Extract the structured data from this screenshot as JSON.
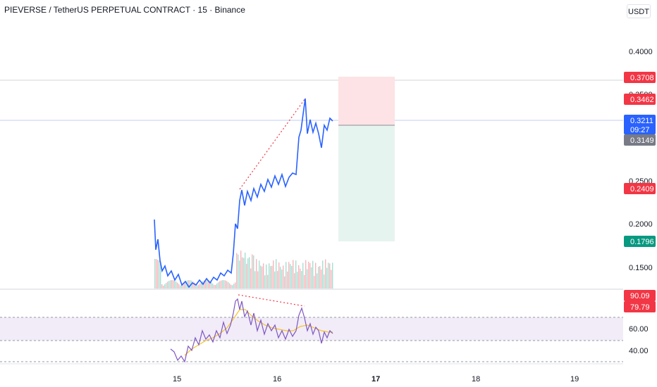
{
  "header": {
    "symbol_title": "PIEVERSE / TetherUS PERPETUAL CONTRACT · 15 · Binance",
    "currency_button": "USDT"
  },
  "price_axis": {
    "ticks": [
      "0.4000",
      "0.3500",
      "0.2500",
      "0.2000",
      "0.1500"
    ]
  },
  "price_tags": [
    {
      "label": "0.3708",
      "color": "#f23645"
    },
    {
      "label": "0.3462",
      "color": "#f23645"
    },
    {
      "label": "0.3211",
      "sub": "09:27",
      "color": "#2962ff"
    },
    {
      "label": "0.3149",
      "color": "#787b86"
    },
    {
      "label": "0.2409",
      "color": "#f23645"
    },
    {
      "label": "0.1796",
      "color": "#089981"
    }
  ],
  "rsi_axis": {
    "ticks": [
      "60.00",
      "40.00"
    ],
    "tags": [
      {
        "label": "90.09",
        "color": "#f23645"
      },
      {
        "label": "79.79",
        "color": "#f23645"
      }
    ]
  },
  "time_axis": {
    "labels": [
      {
        "text": "15",
        "bold": false
      },
      {
        "text": "16",
        "bold": false
      },
      {
        "text": "17",
        "bold": true
      },
      {
        "text": "18",
        "bold": false
      },
      {
        "text": "19",
        "bold": false
      }
    ]
  },
  "position_tool": {
    "entry": 0.3149,
    "stop": 0.3708,
    "target": 0.1796
  },
  "colors": {
    "price_line": "#2962ff",
    "rsi_line": "#7e57c2",
    "rsi_ma": "#f7c325",
    "stop_zone": "#fde3e5",
    "target_zone": "#e6f4ef",
    "divergence": "#f23645"
  }
}
